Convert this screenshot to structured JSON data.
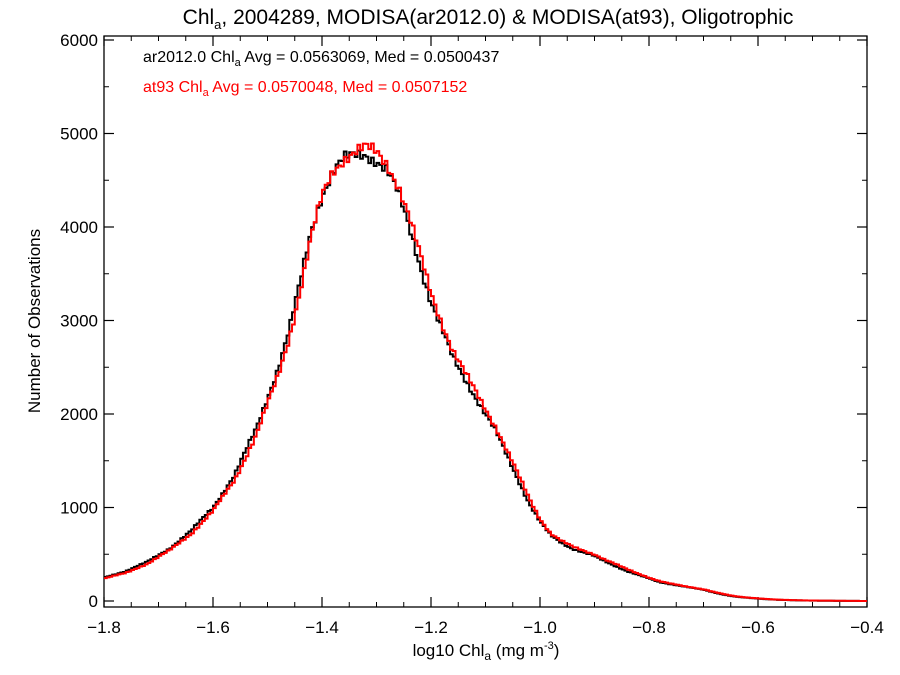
{
  "chart_data": {
    "type": "line",
    "title": {
      "prefix": "Chl",
      "sub": "a",
      "suffix": ", 2004289, MODISA(ar2012.0) & MODISA(at93), Oligotrophic"
    },
    "xlabel": {
      "prefix": "log10 Chl",
      "sub": "a",
      "mid": " (mg m",
      "sup": "-3",
      "suffix": ")"
    },
    "ylabel": "Number of Observations",
    "xlim": [
      -1.8,
      -0.4
    ],
    "ylim": [
      0,
      6000
    ],
    "grid": false,
    "x_ticks": [
      {
        "value": -1.8,
        "label": "−1.8"
      },
      {
        "value": -1.6,
        "label": "−1.6"
      },
      {
        "value": -1.4,
        "label": "−1.4"
      },
      {
        "value": -1.2,
        "label": "−1.2"
      },
      {
        "value": -1.0,
        "label": "−1.0"
      },
      {
        "value": -0.8,
        "label": "−0.8"
      },
      {
        "value": -0.6,
        "label": "−0.6"
      },
      {
        "value": -0.4,
        "label": "−0.4"
      }
    ],
    "y_ticks": [
      {
        "value": 0,
        "label": "0"
      },
      {
        "value": 1000,
        "label": "1000"
      },
      {
        "value": 2000,
        "label": "2000"
      },
      {
        "value": 3000,
        "label": "3000"
      },
      {
        "value": 4000,
        "label": "4000"
      },
      {
        "value": 5000,
        "label": "5000"
      },
      {
        "value": 6000,
        "label": "6000"
      }
    ],
    "legend": {
      "placement": "top-left",
      "entries": [
        {
          "prefix": "ar2012.0 Chl",
          "sub": "a",
          "suffix": " Avg = 0.0563069, Med = 0.0500437",
          "color": "#000000"
        },
        {
          "prefix": "at93 Chl",
          "sub": "a",
          "suffix": " Avg = 0.0570048, Med = 0.0507152",
          "color": "#ff0000"
        }
      ]
    },
    "series": [
      {
        "color": "#000000",
        "x": [
          -1.8,
          -1.76,
          -1.72,
          -1.68,
          -1.64,
          -1.6,
          -1.56,
          -1.52,
          -1.48,
          -1.46,
          -1.44,
          -1.42,
          -1.4,
          -1.38,
          -1.36,
          -1.34,
          -1.32,
          -1.3,
          -1.28,
          -1.26,
          -1.24,
          -1.22,
          -1.2,
          -1.18,
          -1.16,
          -1.14,
          -1.12,
          -1.1,
          -1.08,
          -1.06,
          -1.04,
          -1.02,
          -1.0,
          -0.98,
          -0.96,
          -0.94,
          -0.92,
          -0.9,
          -0.88,
          -0.86,
          -0.84,
          -0.82,
          -0.8,
          -0.78,
          -0.76,
          -0.74,
          -0.72,
          -0.7,
          -0.68,
          -0.66,
          -0.64,
          -0.62,
          -0.6,
          -0.58,
          -0.56,
          -0.54,
          -0.52,
          -0.5,
          -0.48,
          -0.46,
          -0.44,
          -0.42,
          -0.4
        ],
        "y": [
          250,
          320,
          420,
          560,
          750,
          1000,
          1350,
          1850,
          2500,
          2900,
          3400,
          3950,
          4350,
          4600,
          4720,
          4760,
          4780,
          4720,
          4600,
          4350,
          4000,
          3600,
          3200,
          2900,
          2600,
          2400,
          2200,
          2000,
          1800,
          1550,
          1300,
          1050,
          850,
          700,
          620,
          560,
          520,
          480,
          420,
          370,
          320,
          280,
          240,
          200,
          180,
          160,
          140,
          120,
          90,
          65,
          45,
          35,
          25,
          18,
          12,
          9,
          6,
          4,
          3,
          2,
          1,
          1,
          0
        ]
      },
      {
        "color": "#ff0000",
        "x": [
          -1.8,
          -1.76,
          -1.72,
          -1.68,
          -1.64,
          -1.6,
          -1.56,
          -1.52,
          -1.48,
          -1.46,
          -1.44,
          -1.42,
          -1.4,
          -1.38,
          -1.36,
          -1.34,
          -1.32,
          -1.3,
          -1.28,
          -1.26,
          -1.24,
          -1.22,
          -1.2,
          -1.18,
          -1.16,
          -1.14,
          -1.12,
          -1.1,
          -1.08,
          -1.06,
          -1.04,
          -1.02,
          -1.0,
          -0.98,
          -0.96,
          -0.94,
          -0.92,
          -0.9,
          -0.88,
          -0.86,
          -0.84,
          -0.82,
          -0.8,
          -0.78,
          -0.76,
          -0.74,
          -0.72,
          -0.7,
          -0.68,
          -0.66,
          -0.64,
          -0.62,
          -0.6,
          -0.58,
          -0.56,
          -0.54,
          -0.52,
          -0.5,
          -0.48,
          -0.46,
          -0.44,
          -0.42,
          -0.4
        ],
        "y": [
          240,
          300,
          400,
          540,
          720,
          960,
          1300,
          1780,
          2420,
          2820,
          3320,
          3880,
          4320,
          4600,
          4740,
          4800,
          4840,
          4800,
          4680,
          4450,
          4100,
          3700,
          3300,
          2980,
          2680,
          2460,
          2260,
          2060,
          1850,
          1600,
          1350,
          1100,
          880,
          720,
          640,
          580,
          540,
          500,
          440,
          390,
          340,
          295,
          250,
          210,
          185,
          165,
          145,
          125,
          95,
          70,
          50,
          38,
          28,
          20,
          14,
          10,
          7,
          5,
          4,
          3,
          2,
          1,
          0
        ]
      }
    ]
  }
}
